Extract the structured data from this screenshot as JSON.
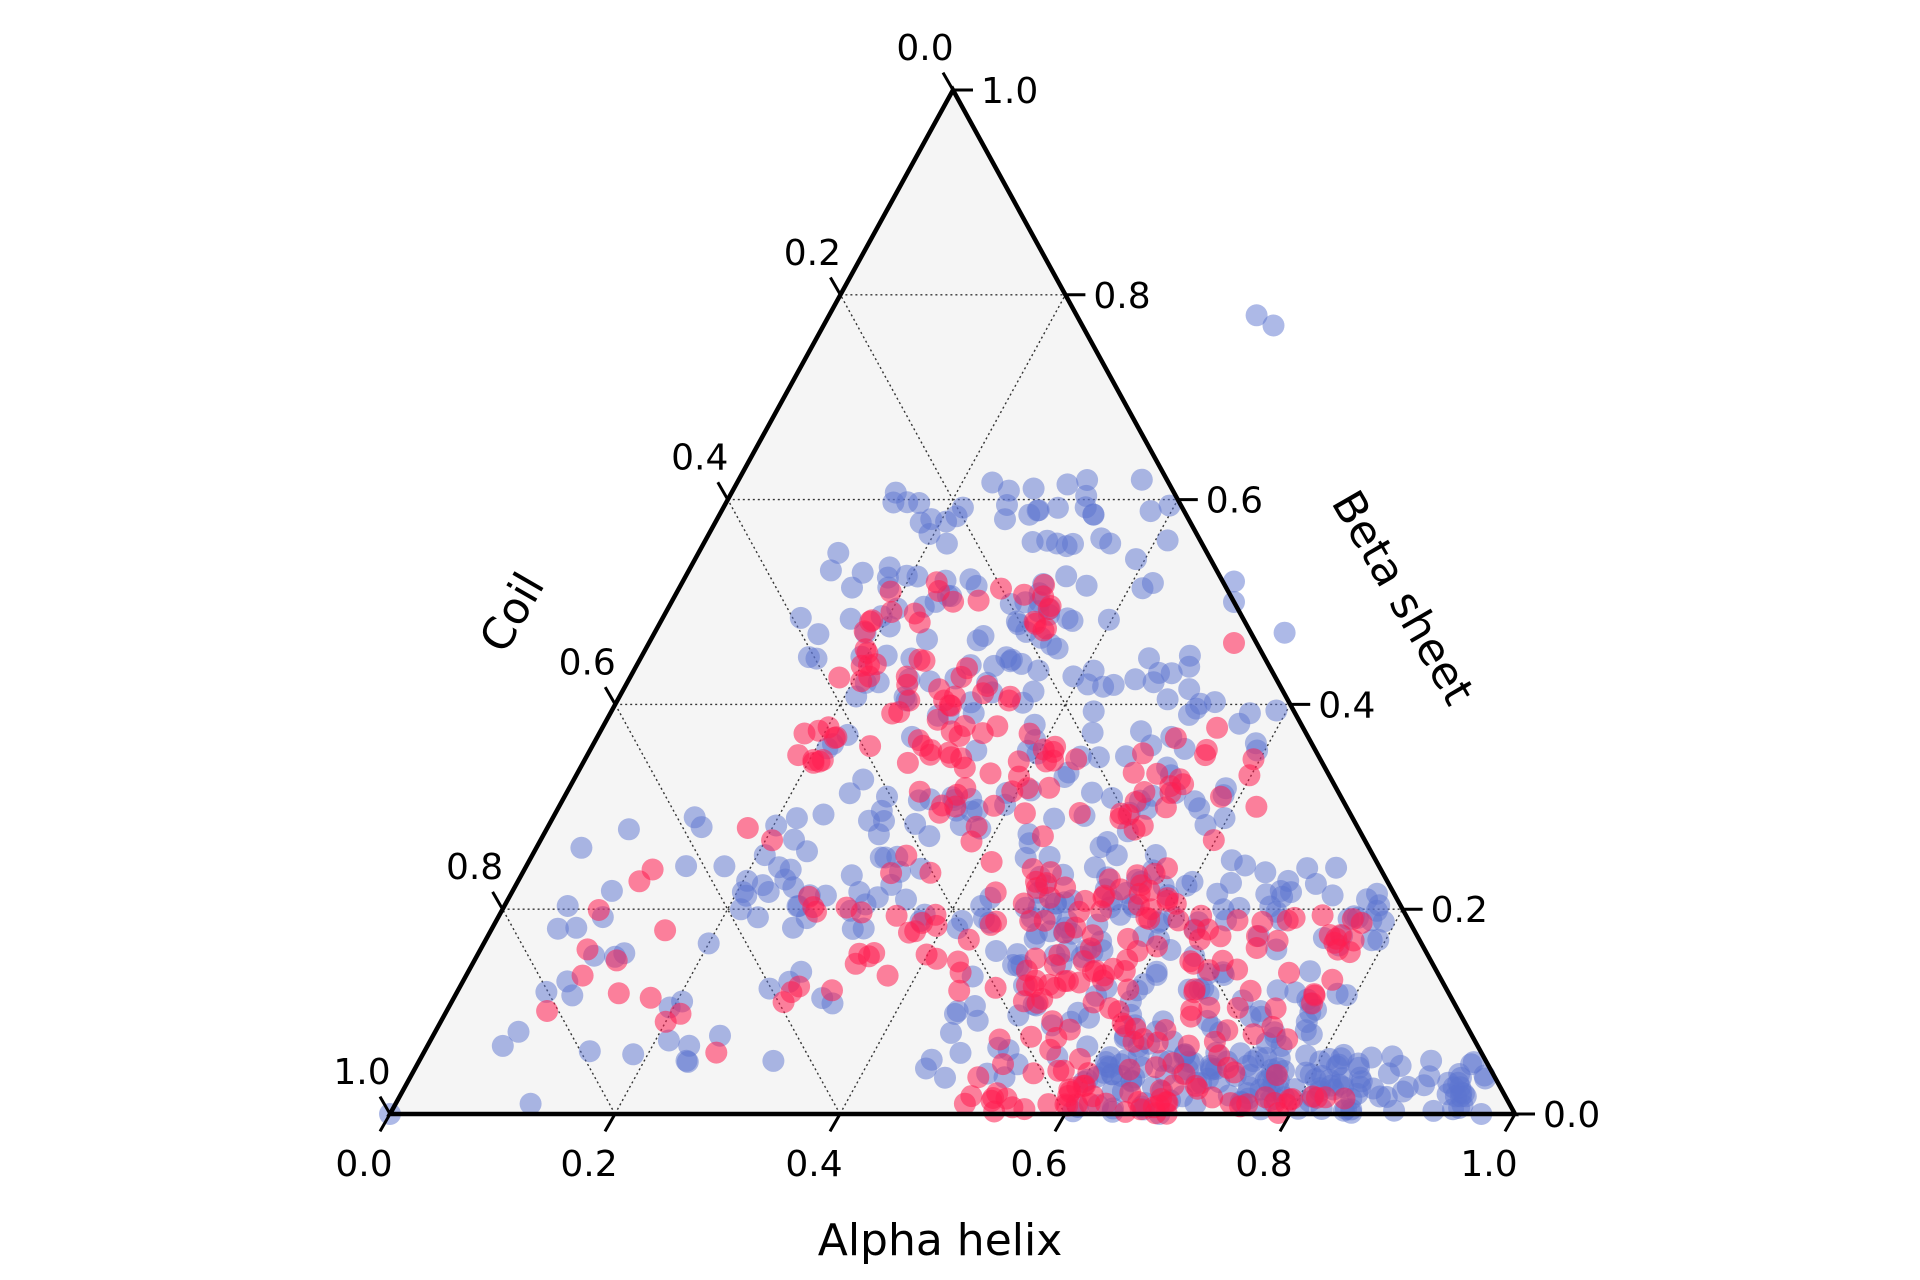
{
  "chart_data": {
    "type": "scatter",
    "subtype": "ternary",
    "axes": {
      "bottom": {
        "label": "Alpha helix",
        "ticks": [
          "0.0",
          "0.2",
          "0.4",
          "0.6",
          "0.8",
          "1.0"
        ]
      },
      "right": {
        "label": "Beta sheet",
        "ticks": [
          "0.0",
          "0.2",
          "0.4",
          "0.6",
          "0.8",
          "1.0"
        ]
      },
      "left": {
        "label": "Coil",
        "ticks": [
          "0.0",
          "0.2",
          "0.4",
          "0.6",
          "0.8",
          "1.0"
        ]
      }
    },
    "range": [
      0,
      1
    ],
    "grid": true,
    "grid_step": 0.2,
    "background": "#f5f5f5",
    "series": [
      {
        "color": "#5b73cf",
        "opacity": 0.5,
        "clusters": [
          {
            "alpha": [
              0.12,
              0.42
            ],
            "beta": [
              0.42,
              0.62
            ],
            "density": 95
          },
          {
            "alpha": [
              0.2,
              0.6
            ],
            "beta": [
              0.18,
              0.45
            ],
            "density": 160
          },
          {
            "alpha": [
              0.45,
              0.8
            ],
            "beta": [
              0.03,
              0.25
            ],
            "density": 170
          },
          {
            "alpha": [
              0.6,
              0.97
            ],
            "beta": [
              0.0,
              0.06
            ],
            "density": 140
          },
          {
            "alpha": [
              0.05,
              0.35
            ],
            "beta": [
              0.05,
              0.3
            ],
            "density": 45
          }
        ],
        "points": [
          [
            0.38,
            0.78
          ],
          [
            0.4,
            0.77
          ],
          [
            0.0,
            0.0
          ],
          [
            0.04,
            0.26
          ],
          [
            0.12,
            0.01
          ],
          [
            0.97,
            0.0
          ],
          [
            0.5,
            0.5
          ],
          [
            0.49,
            0.52
          ],
          [
            0.56,
            0.47
          ]
        ]
      },
      {
        "color": "#ff1e50",
        "opacity": 0.55,
        "clusters": [
          {
            "alpha": [
              0.18,
              0.35
            ],
            "beta": [
              0.34,
              0.52
            ],
            "density": 70
          },
          {
            "alpha": [
              0.3,
              0.6
            ],
            "beta": [
              0.12,
              0.38
            ],
            "density": 120
          },
          {
            "alpha": [
              0.5,
              0.78
            ],
            "beta": [
              0.02,
              0.2
            ],
            "density": 110
          },
          {
            "alpha": [
              0.5,
              0.85
            ],
            "beta": [
              0.0,
              0.02
            ],
            "density": 40
          },
          {
            "alpha": [
              0.08,
              0.3
            ],
            "beta": [
              0.06,
              0.28
            ],
            "density": 18
          }
        ],
        "points": [
          [
            0.26,
            0.06
          ],
          [
            0.2,
            0.09
          ],
          [
            0.62,
            0.3
          ],
          [
            0.52,
            0.46
          ]
        ]
      }
    ]
  }
}
